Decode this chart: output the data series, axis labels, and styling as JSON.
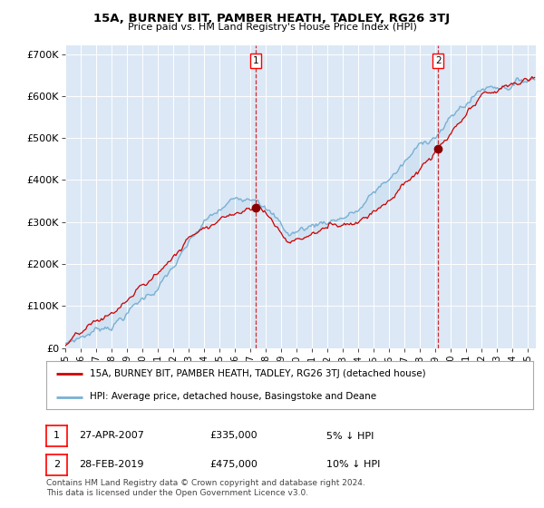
{
  "title": "15A, BURNEY BIT, PAMBER HEATH, TADLEY, RG26 3TJ",
  "subtitle": "Price paid vs. HM Land Registry's House Price Index (HPI)",
  "ylabel_ticks": [
    "£0",
    "£100K",
    "£200K",
    "£300K",
    "£400K",
    "£500K",
    "£600K",
    "£700K"
  ],
  "ylim": [
    0,
    720000
  ],
  "xlim_start": 1995.0,
  "xlim_end": 2025.5,
  "hpi_color": "#7ab0d4",
  "price_color": "#cc0000",
  "fill_color": "#c8dff0",
  "marker1_date": 2007.32,
  "marker1_value": 335000,
  "marker2_date": 2019.16,
  "marker2_value": 475000,
  "legend1_label": "15A, BURNEY BIT, PAMBER HEATH, TADLEY, RG26 3TJ (detached house)",
  "legend2_label": "HPI: Average price, detached house, Basingstoke and Deane",
  "annot1_date": "27-APR-2007",
  "annot1_price": "£335,000",
  "annot1_hpi": "5% ↓ HPI",
  "annot2_date": "28-FEB-2019",
  "annot2_price": "£475,000",
  "annot2_hpi": "10% ↓ HPI",
  "footer": "Contains HM Land Registry data © Crown copyright and database right 2024.\nThis data is licensed under the Open Government Licence v3.0.",
  "bg_color": "#dce8f5",
  "plot_bg": "#ffffff",
  "xtick_labels": [
    "95",
    "96",
    "97",
    "98",
    "99",
    "00",
    "01",
    "02",
    "03",
    "04",
    "05",
    "06",
    "07",
    "08",
    "09",
    "10",
    "11",
    "12",
    "13",
    "14",
    "15",
    "16",
    "17",
    "18",
    "19",
    "20",
    "21",
    "22",
    "23",
    "24",
    "25"
  ]
}
